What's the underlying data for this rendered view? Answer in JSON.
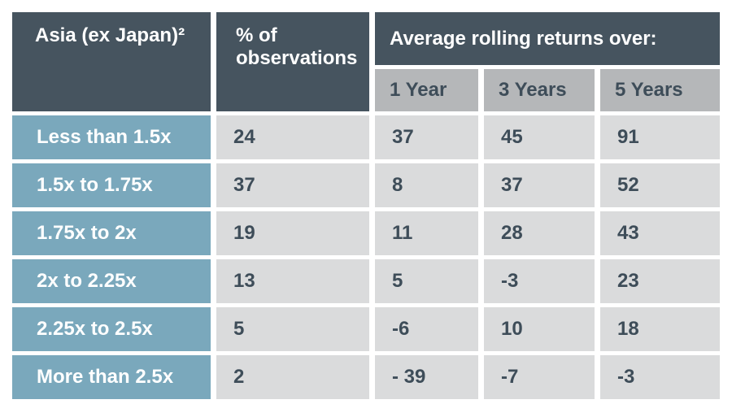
{
  "colors": {
    "header_bg": "#46545f",
    "row_label_bg": "#7aa8bc",
    "subheader_bg": "#b5b7b9",
    "data_cell_bg": "#dadbdc",
    "text_light": "#ffffff",
    "text_dark": "#3e4d59",
    "page_bg": "#ffffff"
  },
  "header": {
    "category": "Asia (ex Japan)²",
    "observations": "% of observations",
    "group": "Average rolling returns over:",
    "sub": [
      "1 Year",
      "3 Years",
      "5 Years"
    ]
  },
  "rows": [
    {
      "label": "Less than 1.5x",
      "pct": "24",
      "y1": "37",
      "y3": "45",
      "y5": "91"
    },
    {
      "label": "1.5x to 1.75x",
      "pct": "37",
      "y1": "8",
      "y3": "37",
      "y5": "52"
    },
    {
      "label": "1.75x to 2x",
      "pct": "19",
      "y1": "11",
      "y3": "28",
      "y5": "43"
    },
    {
      "label": "2x to 2.25x",
      "pct": "13",
      "y1": "5",
      "y3": "-3",
      "y5": "23"
    },
    {
      "label": "2.25x to 2.5x",
      "pct": "5",
      "y1": "-6",
      "y3": "10",
      "y5": "18"
    },
    {
      "label": "More than 2.5x",
      "pct": "2",
      "y1": "- 39",
      "y3": "-7",
      "y5": "-3"
    }
  ],
  "chart_data": {
    "type": "table",
    "group_header": "Average rolling returns over:",
    "columns": [
      "Asia (ex Japan)²",
      "% of observations",
      "1 Year",
      "3 Years",
      "5 Years"
    ],
    "rows": [
      [
        "Less than 1.5x",
        24,
        37,
        45,
        91
      ],
      [
        "1.5x to 1.75x",
        37,
        8,
        37,
        52
      ],
      [
        "1.75x to 2x",
        19,
        11,
        28,
        43
      ],
      [
        "2x to 2.25x",
        13,
        5,
        -3,
        23
      ],
      [
        "2.25x to 2.5x",
        5,
        -6,
        10,
        18
      ],
      [
        "More than 2.5x",
        2,
        -39,
        -7,
        -3
      ]
    ]
  }
}
